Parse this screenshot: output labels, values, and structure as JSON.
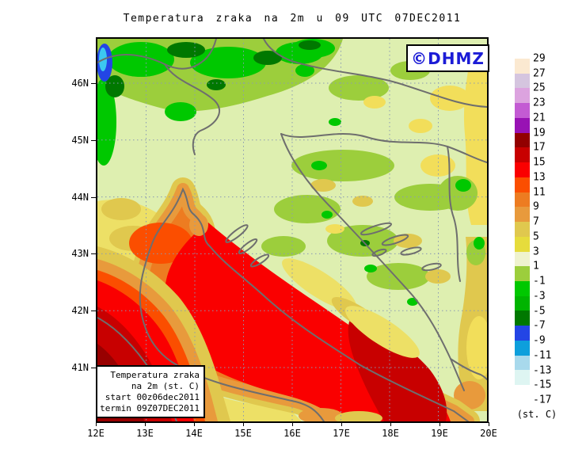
{
  "title": "Temperatura zraka na 2m u 09 UTC 07DEC2011",
  "watermark": {
    "label": "©DHMZ",
    "text_color": "#1C1CD6"
  },
  "info_box": {
    "lines": [
      "Temperatura zraka",
      "na 2m (st. C)",
      "start 00z06dec2011",
      "termin 09Z07DEC2011"
    ]
  },
  "axes": {
    "lon_ticks": [
      "12E",
      "13E",
      "14E",
      "15E",
      "16E",
      "17E",
      "18E",
      "19E",
      "20E"
    ],
    "lat_ticks": [
      "46N",
      "45N",
      "44N",
      "43N",
      "42N",
      "41N"
    ]
  },
  "colorbar": {
    "unit_label": "(st. C)",
    "boundary_labels": [
      "29",
      "27",
      "25",
      "23",
      "21",
      "19",
      "17",
      "15",
      "13",
      "11",
      "9",
      "7",
      "5",
      "3",
      "1",
      "-1",
      "-3",
      "-5",
      "-7",
      "-9",
      "-11",
      "-13",
      "-15",
      "-17"
    ],
    "swatch_colors": [
      "#FBE9D1",
      "#D5C5DF",
      "#DCA3DF",
      "#C35BD3",
      "#9812B4",
      "#920000",
      "#C80000",
      "#FA0000",
      "#FB4E00",
      "#ED7C21",
      "#E89A3C",
      "#E0C84E",
      "#E6DC3C",
      "#EFF3CE",
      "#9CCE3C",
      "#00C800",
      "#00B400",
      "#007800",
      "#2345E5",
      "#0D9FDC",
      "#A8D9EC",
      "#DEF5F2",
      "#FFFFFF"
    ]
  },
  "map_palette": {
    "sea_warm_red": "#FA0000",
    "sea_warmest_dark_red": "#C80000",
    "coastline_gray": "#6E6E6E",
    "grid_gray_blue": "#8A9AB4",
    "cold_alps_blue": "#2345E5",
    "lowland_pale_green": "#DEEFB0"
  }
}
